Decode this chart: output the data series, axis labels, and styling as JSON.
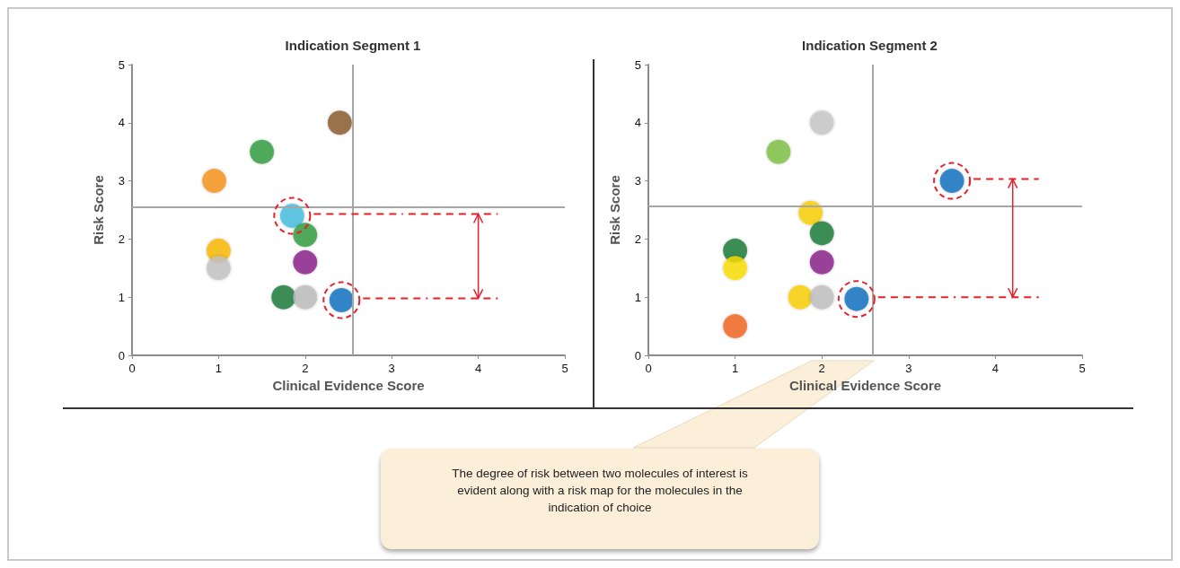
{
  "chart_data": [
    {
      "type": "scatter",
      "title": "Indication Segment 1",
      "xlabel": "Clinical Evidence Score",
      "ylabel": "Risk Score",
      "marker": "circle",
      "x": [
        2.4,
        1.5,
        0.95,
        1.85,
        2,
        1,
        1,
        2,
        1.75,
        2,
        2.42
      ],
      "values": [
        4,
        3.5,
        3,
        2.4,
        2.07,
        1.8,
        1.5,
        1.6,
        1,
        1,
        0.95
      ],
      "colors": [
        "#8b5a2b",
        "#2e9e3e",
        "#f7941d",
        "#45bfe0",
        "#2e9e3e",
        "#fbb900",
        "#c4c4c4",
        "#8b1e8b",
        "#1b7a3a",
        "#bdbdbd",
        "#0a6fc2"
      ],
      "xlim": [
        0,
        5
      ],
      "ylim": [
        0,
        5
      ],
      "xticks": [
        0,
        1,
        2,
        3,
        4,
        5
      ],
      "yticks": [
        0,
        1,
        2,
        3,
        4,
        5
      ],
      "ref_lines": [
        {
          "axis": "x",
          "value": 2.55,
          "color": "#a6a6a6"
        },
        {
          "axis": "y",
          "value": 2.55,
          "color": "#a6a6a6"
        }
      ]
    },
    {
      "type": "scatter",
      "title": "Indication Segment 2",
      "xlabel": "Clinical Evidence Score",
      "ylabel": "Risk Score",
      "marker": "circle",
      "x": [
        2,
        1.5,
        3.5,
        1.87,
        2,
        1,
        1,
        2,
        1.75,
        2,
        2.4,
        1
      ],
      "values": [
        4,
        3.5,
        3,
        2.45,
        2.1,
        1.8,
        1.5,
        1.6,
        1,
        1,
        0.97,
        0.5
      ],
      "colors": [
        "#c8c8c8",
        "#7dc242",
        "#0a6fc2",
        "#fdd000",
        "#1b7a3a",
        "#1b7a3a",
        "#fde000",
        "#8b1e8b",
        "#fdd000",
        "#c0c0c0",
        "#0a6fc2",
        "#f26522"
      ],
      "xlim": [
        0,
        5
      ],
      "ylim": [
        0,
        5
      ],
      "xticks": [
        0,
        1,
        2,
        3,
        4,
        5
      ],
      "yticks": [
        0,
        1,
        2,
        3,
        4,
        5
      ],
      "ref_lines": [
        {
          "axis": "x",
          "value": 2.59,
          "color": "#a6a6a6"
        },
        {
          "axis": "y",
          "value": 2.56,
          "color": "#a6a6a6"
        }
      ]
    },
    {
      "type": "other",
      "annotations": [
        "The degree of risk between two molecules of interest is evident along with a risk map for the molecules in the indication of choice"
      ]
    }
  ]
}
